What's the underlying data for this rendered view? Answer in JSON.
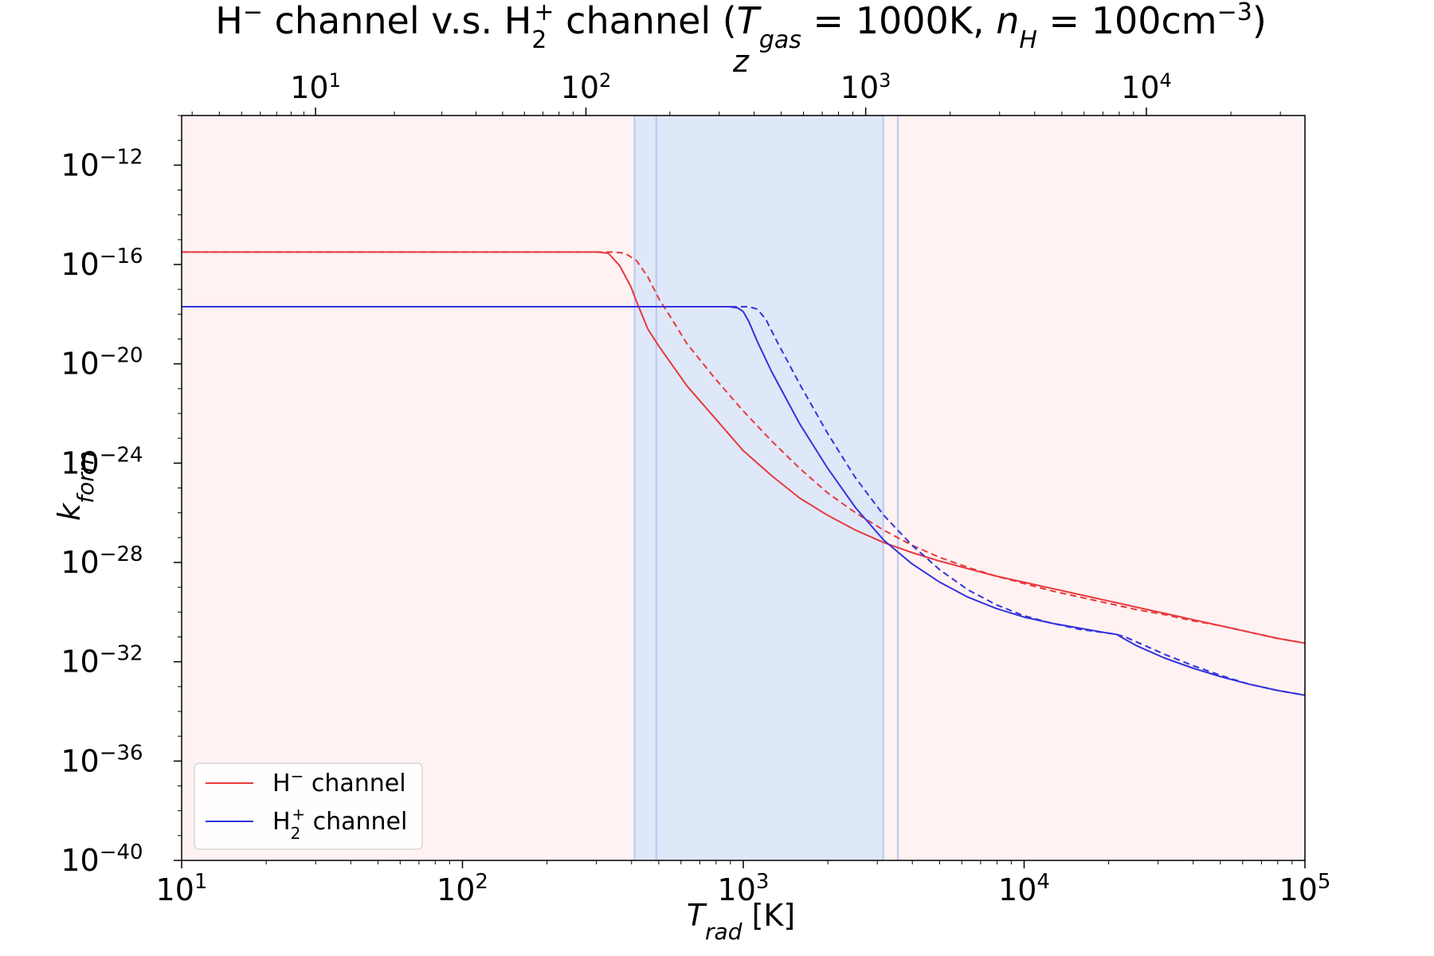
{
  "chart_data": {
    "type": "line",
    "title": "H⁻ channel v.s. H₂⁺ channel (Tgas = 1000K, nH = 100cm⁻³)",
    "title_parts": {
      "p1": "H",
      "p1_sup": "−",
      "p2": " channel v.s. H",
      "p2_sub": "2",
      "p2_sup": "+",
      "p3": " channel (",
      "tgas_sym": "T",
      "tgas_sub": "gas",
      "p4": " = 1000K, ",
      "nh_sym": "n",
      "nh_sub": "H",
      "p5": " = 100cm",
      "p5_sup": "−3",
      "p6": ")"
    },
    "xlabel": {
      "sym": "T",
      "sub": "rad",
      "unit": " [K]"
    },
    "ylabel": {
      "sym": "k",
      "sub": "form"
    },
    "top_xlabel": "z",
    "x_scale": "log",
    "y_scale": "log",
    "xlim": [
      10,
      100000
    ],
    "ylim": [
      1e-40,
      1e-10
    ],
    "x_ticks": [
      {
        "base": "10",
        "exp": "1",
        "value": 10
      },
      {
        "base": "10",
        "exp": "2",
        "value": 100
      },
      {
        "base": "10",
        "exp": "3",
        "value": 1000
      },
      {
        "base": "10",
        "exp": "4",
        "value": 10000
      },
      {
        "base": "10",
        "exp": "5",
        "value": 100000
      }
    ],
    "y_ticks": [
      {
        "base": "10",
        "exp": "−12",
        "value": -12
      },
      {
        "base": "10",
        "exp": "−16",
        "value": -16
      },
      {
        "base": "10",
        "exp": "−20",
        "value": -20
      },
      {
        "base": "10",
        "exp": "−24",
        "value": -24
      },
      {
        "base": "10",
        "exp": "−28",
        "value": -28
      },
      {
        "base": "10",
        "exp": "−32",
        "value": -32
      },
      {
        "base": "10",
        "exp": "−36",
        "value": -36
      },
      {
        "base": "10",
        "exp": "−40",
        "value": -40
      }
    ],
    "top_x_ticks": [
      {
        "base": "10",
        "exp": "1",
        "value": 10
      },
      {
        "base": "10",
        "exp": "2",
        "value": 100
      },
      {
        "base": "10",
        "exp": "3",
        "value": 1000
      },
      {
        "base": "10",
        "exp": "4",
        "value": 10000
      }
    ],
    "top_axis_relation": "T_rad = 2.725 (1+z)",
    "shaded_regions": [
      {
        "x0": 10,
        "x1": 410,
        "color": "#fff2f2"
      },
      {
        "x0": 410,
        "x1": 3150,
        "color": "#dfe8f8"
      },
      {
        "x0": 3150,
        "x1": 100000,
        "color": "#fff2f2"
      }
    ],
    "vertical_lines": [
      410,
      490,
      3150,
      3550
    ],
    "vertical_line_color": "#b9c9ef",
    "series": [
      {
        "name": "H⁻ channel",
        "legend_base": "H",
        "legend_sup": "−",
        "legend_rest": " channel",
        "color": "#e8393c",
        "style": "solid",
        "log10_y": [
          [
            1.0,
            -15.5
          ],
          [
            2.48,
            -15.5
          ],
          [
            2.52,
            -15.55
          ],
          [
            2.56,
            -16.05
          ],
          [
            2.6,
            -16.9
          ],
          [
            2.62,
            -17.5
          ],
          [
            2.66,
            -18.6
          ],
          [
            2.7,
            -19.3
          ],
          [
            2.8,
            -20.9
          ],
          [
            2.9,
            -22.2
          ],
          [
            3.0,
            -23.5
          ],
          [
            3.1,
            -24.5
          ],
          [
            3.2,
            -25.4
          ],
          [
            3.3,
            -26.1
          ],
          [
            3.4,
            -26.7
          ],
          [
            3.5,
            -27.2
          ],
          [
            3.6,
            -27.6
          ],
          [
            3.7,
            -27.95
          ],
          [
            3.8,
            -28.25
          ],
          [
            3.9,
            -28.55
          ],
          [
            4.0,
            -28.8
          ],
          [
            4.1,
            -29.05
          ],
          [
            4.2,
            -29.3
          ],
          [
            4.3,
            -29.55
          ],
          [
            4.4,
            -29.8
          ],
          [
            4.5,
            -30.05
          ],
          [
            4.6,
            -30.3
          ],
          [
            4.7,
            -30.55
          ],
          [
            4.8,
            -30.8
          ],
          [
            4.9,
            -31.05
          ],
          [
            5.0,
            -31.25
          ]
        ]
      },
      {
        "name": "H⁻ channel (dashed)",
        "color": "#e8393c",
        "style": "dashed",
        "log10_y": [
          [
            1.0,
            -15.5
          ],
          [
            2.54,
            -15.5
          ],
          [
            2.58,
            -15.55
          ],
          [
            2.62,
            -15.85
          ],
          [
            2.66,
            -16.5
          ],
          [
            2.7,
            -17.4
          ],
          [
            2.74,
            -18.1
          ],
          [
            2.8,
            -19.2
          ],
          [
            2.9,
            -20.6
          ],
          [
            3.0,
            -21.9
          ],
          [
            3.1,
            -23.1
          ],
          [
            3.2,
            -24.2
          ],
          [
            3.3,
            -25.2
          ],
          [
            3.4,
            -26.0
          ],
          [
            3.5,
            -26.7
          ],
          [
            3.6,
            -27.3
          ],
          [
            3.7,
            -27.8
          ],
          [
            3.8,
            -28.2
          ],
          [
            3.9,
            -28.55
          ],
          [
            4.0,
            -28.85
          ],
          [
            4.1,
            -29.15
          ],
          [
            4.2,
            -29.4
          ],
          [
            4.3,
            -29.65
          ],
          [
            4.4,
            -29.9
          ],
          [
            4.5,
            -30.1
          ],
          [
            4.6,
            -30.35
          ],
          [
            4.7,
            -30.55
          ],
          [
            4.8,
            -30.8
          ],
          [
            4.9,
            -31.05
          ],
          [
            5.0,
            -31.25
          ]
        ]
      },
      {
        "name": "H₂⁺ channel",
        "legend_base": "H",
        "legend_sub": "2",
        "legend_sup": "+",
        "legend_rest": " channel",
        "color": "#3333dd",
        "style": "solid",
        "log10_y": [
          [
            1.0,
            -17.7
          ],
          [
            2.95,
            -17.7
          ],
          [
            2.98,
            -17.75
          ],
          [
            3.0,
            -17.9
          ],
          [
            3.02,
            -18.3
          ],
          [
            3.05,
            -19.1
          ],
          [
            3.1,
            -20.3
          ],
          [
            3.2,
            -22.4
          ],
          [
            3.3,
            -24.2
          ],
          [
            3.4,
            -25.8
          ],
          [
            3.5,
            -27.1
          ],
          [
            3.6,
            -28.05
          ],
          [
            3.7,
            -28.8
          ],
          [
            3.8,
            -29.4
          ],
          [
            3.9,
            -29.85
          ],
          [
            4.0,
            -30.2
          ],
          [
            4.1,
            -30.45
          ],
          [
            4.2,
            -30.65
          ],
          [
            4.3,
            -30.85
          ],
          [
            4.33,
            -30.9
          ],
          [
            4.36,
            -31.1
          ],
          [
            4.4,
            -31.35
          ],
          [
            4.5,
            -31.85
          ],
          [
            4.6,
            -32.25
          ],
          [
            4.7,
            -32.6
          ],
          [
            4.8,
            -32.9
          ],
          [
            4.9,
            -33.15
          ],
          [
            5.0,
            -33.35
          ]
        ]
      },
      {
        "name": "H₂⁺ channel (dashed)",
        "color": "#3333dd",
        "style": "dashed",
        "log10_y": [
          [
            1.0,
            -17.7
          ],
          [
            3.02,
            -17.7
          ],
          [
            3.05,
            -17.8
          ],
          [
            3.08,
            -18.2
          ],
          [
            3.12,
            -19.1
          ],
          [
            3.2,
            -20.8
          ],
          [
            3.3,
            -22.8
          ],
          [
            3.4,
            -24.6
          ],
          [
            3.5,
            -26.1
          ],
          [
            3.6,
            -27.3
          ],
          [
            3.7,
            -28.3
          ],
          [
            3.8,
            -29.1
          ],
          [
            3.9,
            -29.7
          ],
          [
            4.0,
            -30.15
          ],
          [
            4.1,
            -30.45
          ],
          [
            4.2,
            -30.7
          ],
          [
            4.3,
            -30.85
          ],
          [
            4.33,
            -30.9
          ],
          [
            4.36,
            -31.0
          ],
          [
            4.4,
            -31.2
          ],
          [
            4.5,
            -31.7
          ],
          [
            4.6,
            -32.15
          ],
          [
            4.7,
            -32.55
          ],
          [
            4.8,
            -32.9
          ],
          [
            4.9,
            -33.15
          ],
          [
            5.0,
            -33.35
          ]
        ]
      }
    ],
    "legend_position": "lower-left",
    "grid": false
  }
}
